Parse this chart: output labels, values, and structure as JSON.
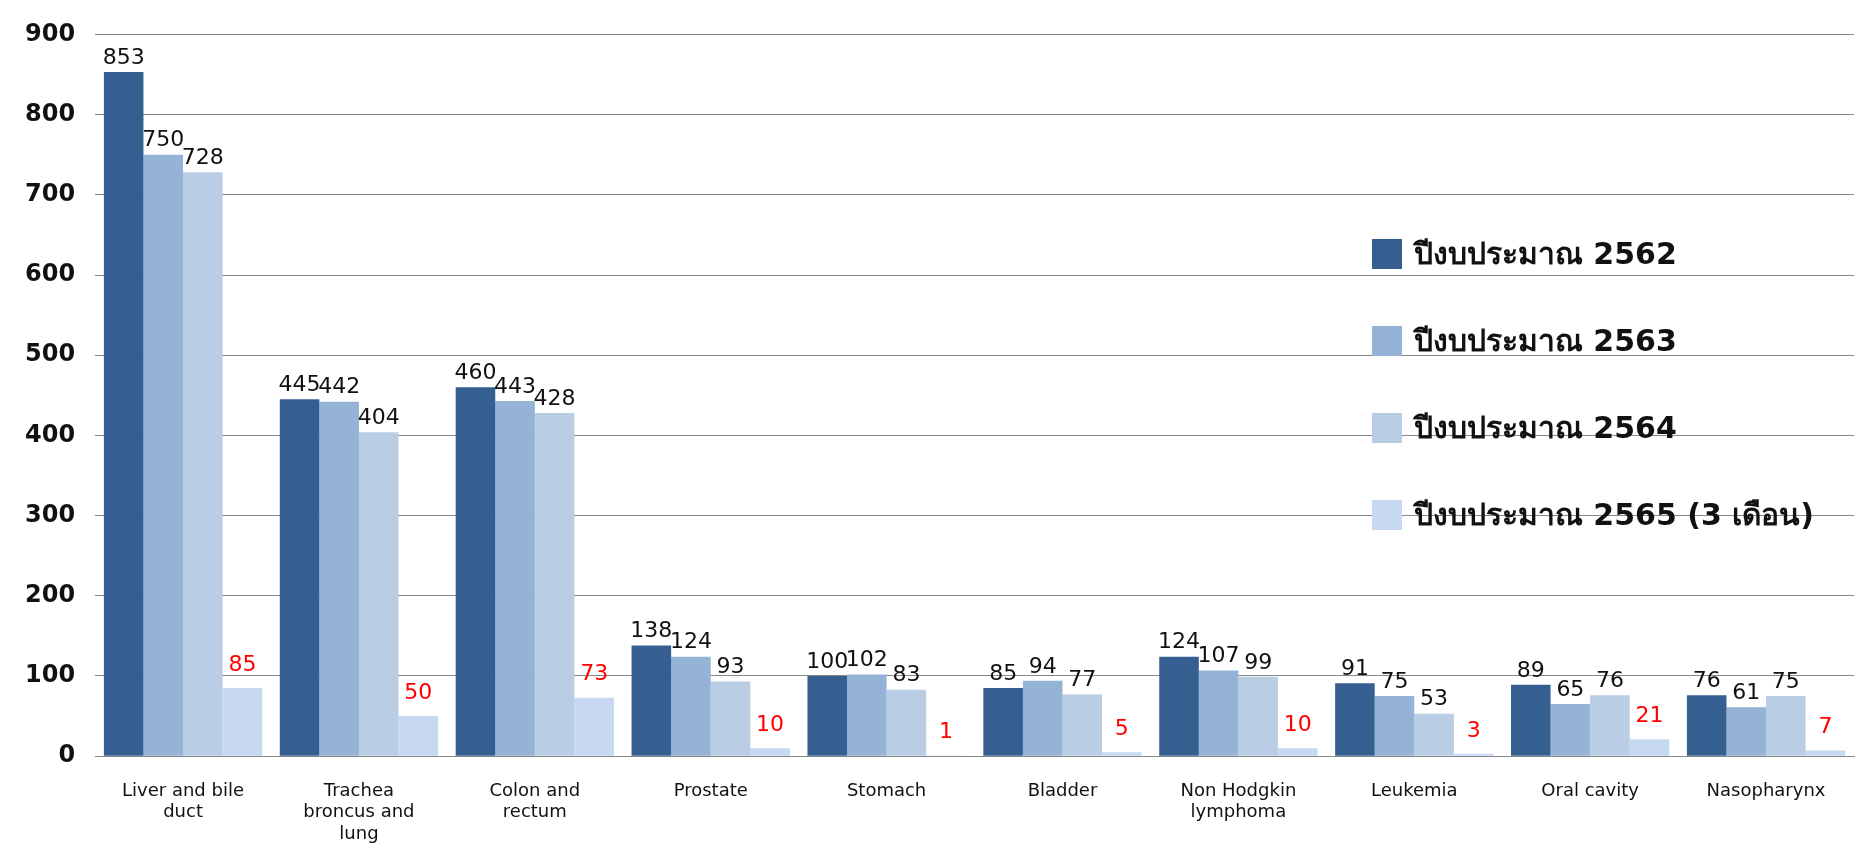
{
  "chart_data": {
    "type": "bar",
    "categories": [
      "Liver and bile duct",
      "Trachea broncus and lung",
      "Colon and rectum",
      "Prostate",
      "Stomach",
      "Bladder",
      "Non Hodgkin lymphoma",
      "Leukemia",
      "Oral cavity",
      "Nasopharynx"
    ],
    "series": [
      {
        "name": "ปีงบประมาณ 2562",
        "color": "#365f91",
        "values": [
          853,
          445,
          460,
          138,
          100,
          85,
          124,
          91,
          89,
          76
        ]
      },
      {
        "name": "ปีงบประมาณ 2563",
        "color": "#95b3d7",
        "values": [
          750,
          442,
          443,
          124,
          102,
          94,
          107,
          75,
          65,
          61
        ]
      },
      {
        "name": "ปีงบประมาณ 2564",
        "color": "#b9cde5",
        "values": [
          728,
          404,
          428,
          93,
          83,
          77,
          99,
          53,
          76,
          75
        ]
      },
      {
        "name": "ปีงบประมาณ 2565 (3 เดือน)",
        "color": "#c6d9f1",
        "values": [
          85,
          50,
          73,
          10,
          1,
          5,
          10,
          3,
          21,
          7
        ]
      }
    ],
    "ylim": [
      0,
      900
    ],
    "yticks": [
      0,
      100,
      200,
      300,
      400,
      500,
      600,
      700,
      800,
      900
    ],
    "grid": "y",
    "legend": "right",
    "data_labels": true
  }
}
